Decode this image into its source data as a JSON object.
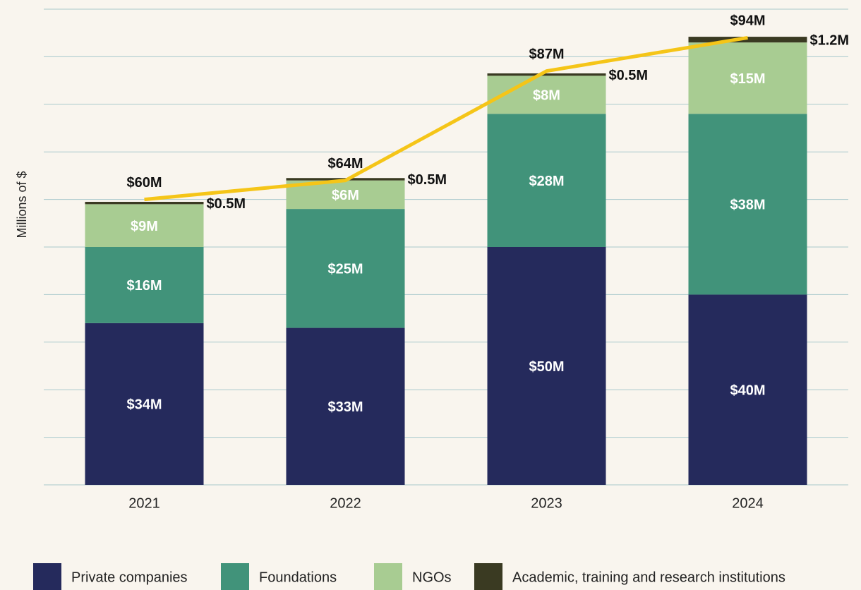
{
  "chart_data": {
    "type": "bar",
    "stacked": true,
    "y_label": "Millions of $",
    "categories": [
      "2021",
      "2022",
      "2023",
      "2024"
    ],
    "series": [
      {
        "name": "Private companies",
        "color": "#252a5c",
        "values": [
          34,
          33,
          50,
          40
        ],
        "value_labels": [
          "$34M",
          "$33M",
          "$50M",
          "$40M"
        ]
      },
      {
        "name": "Foundations",
        "color": "#41937a",
        "values": [
          16,
          25,
          28,
          38
        ],
        "value_labels": [
          "$16M",
          "$25M",
          "$28M",
          "$38M"
        ]
      },
      {
        "name": "NGOs",
        "color": "#a8cc92",
        "values": [
          9,
          6,
          8,
          15
        ],
        "value_labels": [
          "$9M",
          "$6M",
          "$8M",
          "$15M"
        ]
      },
      {
        "name": "Academic, training and research institutions",
        "color": "#3a3a22",
        "values": [
          0.5,
          0.5,
          0.5,
          1.2
        ],
        "value_labels": [
          "$0.5M",
          "$0.5M",
          "$0.5M",
          "$1.2M"
        ]
      }
    ],
    "totals": {
      "color": "#f5c518",
      "values": [
        60,
        64,
        87,
        94
      ],
      "value_labels": [
        "$60M",
        "$64M",
        "$87M",
        "$94M"
      ]
    },
    "ylim": [
      0,
      100
    ],
    "yticks": [
      0,
      10,
      20,
      30,
      40,
      50,
      60,
      70,
      80,
      90,
      100
    ],
    "grid": true,
    "legend": "bottom"
  }
}
